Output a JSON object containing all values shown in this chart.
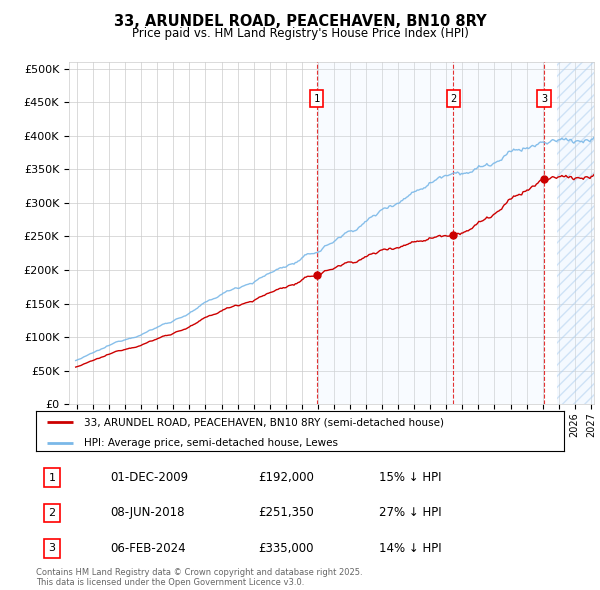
{
  "title": "33, ARUNDEL ROAD, PEACEHAVEN, BN10 8RY",
  "subtitle": "Price paid vs. HM Land Registry's House Price Index (HPI)",
  "hpi_color": "#7ab8e8",
  "price_color": "#cc0000",
  "bg_color": "#ffffff",
  "grid_color": "#cccccc",
  "shade_color": "#ddeeff",
  "ylim": [
    0,
    510000
  ],
  "yticks": [
    0,
    50000,
    100000,
    150000,
    200000,
    250000,
    300000,
    350000,
    400000,
    450000,
    500000
  ],
  "ytick_labels": [
    "£0",
    "£50K",
    "£100K",
    "£150K",
    "£200K",
    "£250K",
    "£300K",
    "£350K",
    "£400K",
    "£450K",
    "£500K"
  ],
  "xmin": 1994.5,
  "xmax": 2027.2,
  "legend_line1": "33, ARUNDEL ROAD, PEACEHAVEN, BN10 8RY (semi-detached house)",
  "legend_line2": "HPI: Average price, semi-detached house, Lewes",
  "transactions": [
    {
      "num": 1,
      "date": "01-DEC-2009",
      "price": 192000,
      "price_str": "£192,000",
      "pct": "15%",
      "dir": "↓",
      "year": 2009.92
    },
    {
      "num": 2,
      "date": "08-JUN-2018",
      "price": 251350,
      "price_str": "£251,350",
      "pct": "27%",
      "dir": "↓",
      "year": 2018.44
    },
    {
      "num": 3,
      "date": "06-FEB-2024",
      "price": 335000,
      "price_str": "£335,000",
      "pct": "14%",
      "dir": "↓",
      "year": 2024.1
    }
  ],
  "future_start": 2024.92,
  "footer": "Contains HM Land Registry data © Crown copyright and database right 2025.\nThis data is licensed under the Open Government Licence v3.0."
}
